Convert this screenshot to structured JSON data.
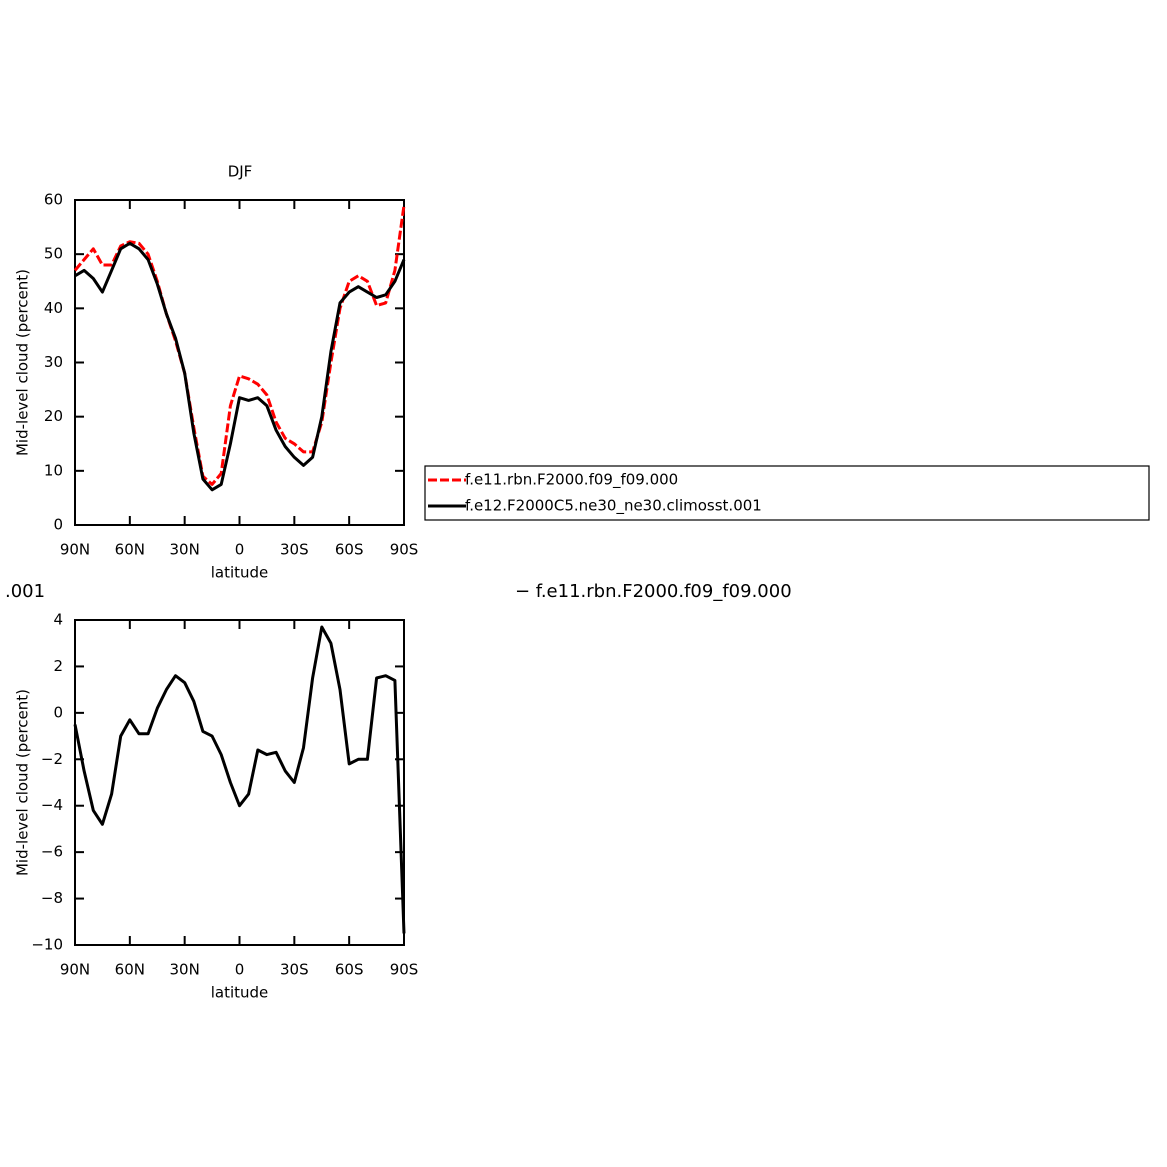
{
  "chart_data": [
    {
      "type": "line",
      "title": "DJF",
      "ylabel": "Mid-level cloud (percent)",
      "xlabel": "latitude",
      "x": [
        90,
        85,
        80,
        75,
        70,
        65,
        60,
        55,
        50,
        45,
        40,
        35,
        30,
        25,
        20,
        15,
        10,
        5,
        0,
        -5,
        -10,
        -15,
        -20,
        -25,
        -30,
        -35,
        -40,
        -45,
        -50,
        -55,
        -60,
        -65,
        -70,
        -75,
        -80,
        -85,
        -90
      ],
      "xlim": [
        90,
        -90
      ],
      "xticks": [
        {
          "value": 90,
          "label": "90N"
        },
        {
          "value": 60,
          "label": "60N"
        },
        {
          "value": 30,
          "label": "30N"
        },
        0,
        {
          "value": -30,
          "label": "30S"
        },
        {
          "value": -60,
          "label": "60S"
        },
        {
          "value": -90,
          "label": "90S"
        }
      ],
      "ylim": [
        0,
        60
      ],
      "yticks": [
        0,
        10,
        20,
        30,
        40,
        50,
        60
      ],
      "series": [
        {
          "name": "f.e11.rbn.F2000.f09_f09.000",
          "color": "#ff0000",
          "dash": true,
          "values": [
            47,
            49,
            51,
            48,
            48,
            51.5,
            52.3,
            52,
            50,
            45,
            39,
            34,
            28,
            18,
            9,
            7.5,
            9.5,
            22,
            27.5,
            27,
            26,
            24,
            19,
            16,
            15,
            13.5,
            13.5,
            19,
            30,
            40,
            45,
            46,
            45,
            40.5,
            41,
            47,
            59
          ]
        },
        {
          "name": "f.e12.F2000C5.ne30_ne30.climosst.001",
          "color": "#000000",
          "dash": false,
          "values": [
            46,
            47,
            45.5,
            43,
            47,
            51,
            52,
            51,
            49,
            44.5,
            39,
            34.5,
            28,
            17,
            8.5,
            6.5,
            7.5,
            15,
            23.5,
            23,
            23.5,
            22,
            17.5,
            14.5,
            12.5,
            11,
            12.5,
            20,
            32,
            41,
            43,
            44,
            43,
            42,
            42.5,
            45,
            49
          ]
        }
      ]
    },
    {
      "type": "line",
      "title_left": ".001",
      "title_right": "− f.e11.rbn.F2000.f09_f09.000",
      "ylabel": "Mid-level cloud (percent)",
      "xlabel": "latitude",
      "x": [
        90,
        85,
        80,
        75,
        70,
        65,
        60,
        55,
        50,
        45,
        40,
        35,
        30,
        25,
        20,
        15,
        10,
        5,
        0,
        -5,
        -10,
        -15,
        -20,
        -25,
        -30,
        -35,
        -40,
        -45,
        -50,
        -55,
        -60,
        -65,
        -70,
        -75,
        -80,
        -85,
        -90
      ],
      "xlim": [
        90,
        -90
      ],
      "xticks": [
        {
          "value": 90,
          "label": "90N"
        },
        {
          "value": 60,
          "label": "60N"
        },
        {
          "value": 30,
          "label": "30N"
        },
        0,
        {
          "value": -30,
          "label": "30S"
        },
        {
          "value": -60,
          "label": "60S"
        },
        {
          "value": -90,
          "label": "90S"
        }
      ],
      "ylim": [
        -10,
        4
      ],
      "yticks": [
        {
          "value": -10,
          "label": "−10"
        },
        {
          "value": -8,
          "label": "−8"
        },
        {
          "value": -6,
          "label": "−6"
        },
        {
          "value": -4,
          "label": "−4"
        },
        {
          "value": -2,
          "label": "−2"
        },
        0,
        2,
        4
      ],
      "series": [
        {
          "color": "#000000",
          "dash": false,
          "values": [
            -0.5,
            -2.5,
            -4.2,
            -4.8,
            -3.5,
            -1,
            -0.3,
            -0.9,
            -0.9,
            0.2,
            1,
            1.6,
            1.3,
            0.5,
            -0.8,
            -1,
            -1.8,
            -3,
            -4,
            -3.5,
            -1.6,
            -1.8,
            -1.7,
            -2.5,
            -3,
            -1.5,
            1.5,
            3.7,
            3,
            1,
            -2.2,
            -2,
            -2,
            1.5,
            1.6,
            1.4,
            -9.5
          ]
        }
      ]
    }
  ]
}
